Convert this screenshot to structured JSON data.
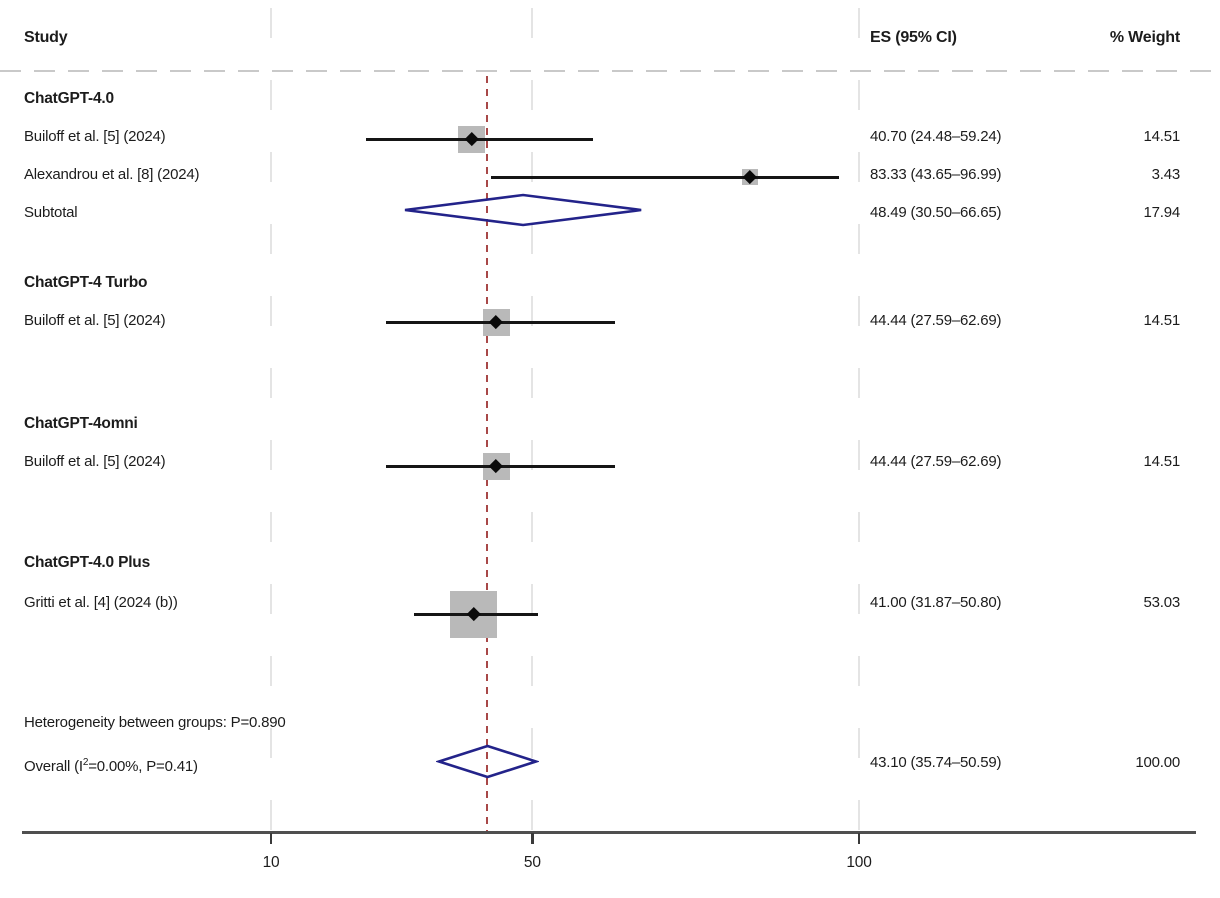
{
  "header": {
    "study": "Study",
    "es": "ES (95% CI)",
    "weight": "% Weight"
  },
  "colors": {
    "text": "#1c1c1c",
    "ci_line": "#151515",
    "weight_box": "#b9b9b9",
    "pooled_diamond": "#23238a",
    "reference_line": "#a84848",
    "gridline": "#e4e4e4",
    "axis": "#4f4f4f"
  },
  "chart_data": {
    "type": "forest",
    "title": "",
    "columns": [
      "Study",
      "ES (95% CI)",
      "% Weight"
    ],
    "x_axis": {
      "scale": "linear",
      "ticks": [
        10,
        50,
        100
      ]
    },
    "reference_line_value": 43.1,
    "groups": [
      {
        "label": "ChatGPT-4.0",
        "studies": [
          {
            "label": "Builoff et al. [5] (2024)",
            "es": 40.7,
            "ci_low": 24.48,
            "ci_high": 59.24,
            "es_text": "40.70 (24.48–59.24)",
            "weight_text": "14.51",
            "weight": 14.51
          },
          {
            "label": "Alexandrou et al. [8] (2024)",
            "es": 83.33,
            "ci_low": 43.65,
            "ci_high": 96.99,
            "es_text": "83.33 (43.65–96.99)",
            "weight_text": "3.43",
            "weight": 3.43
          }
        ],
        "subtotal": {
          "label": "Subtotal",
          "es": 48.49,
          "ci_low": 30.5,
          "ci_high": 66.65,
          "es_text": "48.49 (30.50–66.65)",
          "weight_text": "17.94",
          "weight": 17.94
        }
      },
      {
        "label": "ChatGPT-4 Turbo",
        "studies": [
          {
            "label": "Builoff et al. [5] (2024)",
            "es": 44.44,
            "ci_low": 27.59,
            "ci_high": 62.69,
            "es_text": "44.44 (27.59–62.69)",
            "weight_text": "14.51",
            "weight": 14.51
          }
        ],
        "subtotal": null
      },
      {
        "label": "ChatGPT-4omni",
        "studies": [
          {
            "label": "Builoff et al. [5] (2024)",
            "es": 44.44,
            "ci_low": 27.59,
            "ci_high": 62.69,
            "es_text": "44.44 (27.59–62.69)",
            "weight_text": "14.51",
            "weight": 14.51
          }
        ],
        "subtotal": null
      },
      {
        "label": "ChatGPT-4.0 Plus",
        "studies": [
          {
            "label": "Gritti et al. [4] (2024 (b))",
            "es": 41.0,
            "ci_low": 31.87,
            "ci_high": 50.8,
            "es_text": "41.00 (31.87–50.80)",
            "weight_text": "53.03",
            "weight": 53.03
          }
        ],
        "subtotal": null
      }
    ],
    "heterogeneity_note": "Heterogeneity between groups: P=0.890",
    "overall": {
      "label": "Overall (I²=0.00%, P=0.41)",
      "es": 43.1,
      "ci_low": 35.74,
      "ci_high": 50.59,
      "es_text": "43.10 (35.74–50.59)",
      "weight_text": "100.00",
      "weight": 100.0
    }
  }
}
